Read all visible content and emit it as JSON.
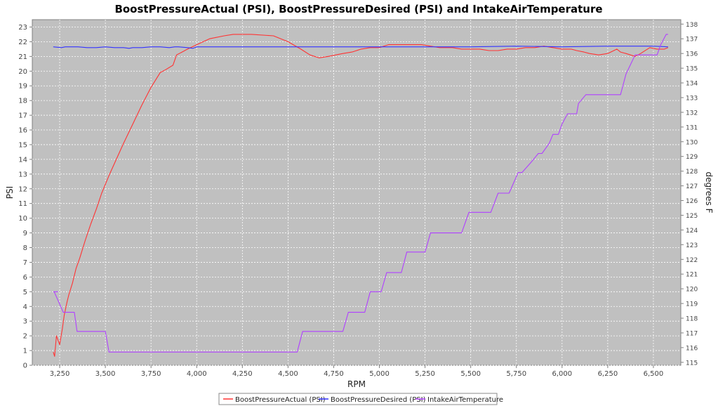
{
  "chart_data": {
    "type": "line",
    "title": "BoostPressureActual (PSI), BoostPressureDesired (PSI) and IntakeAirTemperature",
    "xlabel": "RPM",
    "ylabel": "PSI",
    "y2label": "degrees F",
    "xlim": [
      3100,
      6650
    ],
    "ylim": [
      0,
      23.5
    ],
    "y2lim": [
      114.8,
      138.3
    ],
    "x_ticks": [
      3250,
      3500,
      3750,
      4000,
      4250,
      4500,
      4750,
      5000,
      5250,
      5500,
      5750,
      6000,
      6250,
      6500
    ],
    "x_tick_labels": [
      "3,250",
      "3,500",
      "3,750",
      "4,000",
      "4,250",
      "4,500",
      "4,750",
      "5,000",
      "5,250",
      "5,500",
      "5,750",
      "6,000",
      "6,250",
      "6,500"
    ],
    "y_ticks": [
      0,
      1,
      2,
      3,
      4,
      5,
      6,
      7,
      8,
      9,
      10,
      11,
      12,
      13,
      14,
      15,
      16,
      17,
      18,
      19,
      20,
      21,
      22,
      23
    ],
    "y2_ticks": [
      115,
      116,
      117,
      118,
      119,
      120,
      121,
      122,
      123,
      124,
      125,
      126,
      127,
      128,
      129,
      130,
      131,
      132,
      133,
      134,
      135,
      136,
      137,
      138
    ],
    "grid": true,
    "legend_position": "bottom-center",
    "colors": {
      "plot_bg": "#c0c0c0",
      "grid": "#ffffff"
    },
    "series": [
      {
        "name": "BoostPressureActual (PSI)",
        "color": "#ff3333",
        "axis": "left",
        "x": [
          3215,
          3222,
          3232,
          3250,
          3265,
          3275,
          3290,
          3300,
          3320,
          3340,
          3360,
          3390,
          3420,
          3450,
          3480,
          3520,
          3560,
          3600,
          3650,
          3700,
          3750,
          3800,
          3830,
          3870,
          3890,
          3920,
          3950,
          4000,
          4070,
          4150,
          4200,
          4300,
          4420,
          4500,
          4570,
          4620,
          4670,
          4720,
          4800,
          4850,
          4900,
          4950,
          5000,
          5050,
          5120,
          5180,
          5230,
          5280,
          5330,
          5400,
          5450,
          5500,
          5550,
          5600,
          5650,
          5700,
          5750,
          5800,
          5850,
          5900,
          5950,
          6000,
          6050,
          6080,
          6120,
          6150,
          6200,
          6250,
          6300,
          6320,
          6350,
          6400,
          6430,
          6480,
          6520,
          6560,
          6580
        ],
        "values": [
          0.9,
          0.6,
          2.0,
          1.4,
          2.5,
          3.4,
          4.3,
          4.8,
          5.6,
          6.6,
          7.3,
          8.5,
          9.6,
          10.6,
          11.7,
          12.9,
          14.0,
          15.1,
          16.4,
          17.7,
          18.9,
          19.9,
          20.1,
          20.4,
          21.1,
          21.3,
          21.5,
          21.8,
          22.2,
          22.4,
          22.5,
          22.5,
          22.4,
          22.0,
          21.5,
          21.1,
          20.9,
          21.0,
          21.2,
          21.3,
          21.5,
          21.6,
          21.6,
          21.8,
          21.8,
          21.8,
          21.8,
          21.7,
          21.6,
          21.6,
          21.5,
          21.5,
          21.5,
          21.4,
          21.4,
          21.5,
          21.5,
          21.6,
          21.6,
          21.7,
          21.6,
          21.5,
          21.5,
          21.4,
          21.3,
          21.2,
          21.1,
          21.2,
          21.5,
          21.3,
          21.2,
          21.0,
          21.2,
          21.6,
          21.5,
          21.5,
          21.6
        ]
      },
      {
        "name": "BoostPressureDesired (PSI)",
        "color": "#3333ff",
        "axis": "left",
        "x": [
          3215,
          3260,
          3280,
          3300,
          3350,
          3400,
          3450,
          3500,
          3550,
          3600,
          3630,
          3650,
          3700,
          3750,
          3800,
          3850,
          3880,
          3900,
          3950,
          3980,
          4000,
          4050,
          4200,
          4500,
          5000,
          5500,
          5750,
          6000,
          6250,
          6500,
          6580
        ],
        "values": [
          21.65,
          21.6,
          21.65,
          21.65,
          21.65,
          21.6,
          21.6,
          21.65,
          21.6,
          21.6,
          21.55,
          21.6,
          21.6,
          21.65,
          21.65,
          21.6,
          21.65,
          21.65,
          21.6,
          21.55,
          21.65,
          21.65,
          21.65,
          21.65,
          21.65,
          21.65,
          21.7,
          21.65,
          21.7,
          21.7,
          21.65
        ]
      },
      {
        "name": "IntakeAirTemperature",
        "color": "#b040ff",
        "axis": "right",
        "x": [
          3215,
          3240,
          3220,
          3270,
          3330,
          3345,
          3500,
          3520,
          4550,
          4580,
          4800,
          4830,
          4920,
          4950,
          5010,
          5040,
          5120,
          5150,
          5250,
          5280,
          5450,
          5490,
          5610,
          5650,
          5710,
          5760,
          5780,
          5830,
          5870,
          5890,
          5930,
          5950,
          5980,
          6000,
          6030,
          6080,
          6090,
          6130,
          6150,
          6200,
          6210,
          6260,
          6320,
          6350,
          6400,
          6440,
          6520,
          6540,
          6570,
          6580
        ],
        "values": [
          119.8,
          119.8,
          119.8,
          118.4,
          118.4,
          117.1,
          117.1,
          115.7,
          115.7,
          117.1,
          117.1,
          118.4,
          118.4,
          119.8,
          119.8,
          121.1,
          121.1,
          122.5,
          122.5,
          123.8,
          123.8,
          125.2,
          125.2,
          126.5,
          126.5,
          127.9,
          127.9,
          128.6,
          129.2,
          129.2,
          129.9,
          130.5,
          130.5,
          131.2,
          131.9,
          131.9,
          132.6,
          133.2,
          133.2,
          133.2,
          133.2,
          133.2,
          133.2,
          134.6,
          135.9,
          135.9,
          135.9,
          136.6,
          137.3,
          137.3
        ]
      }
    ]
  }
}
